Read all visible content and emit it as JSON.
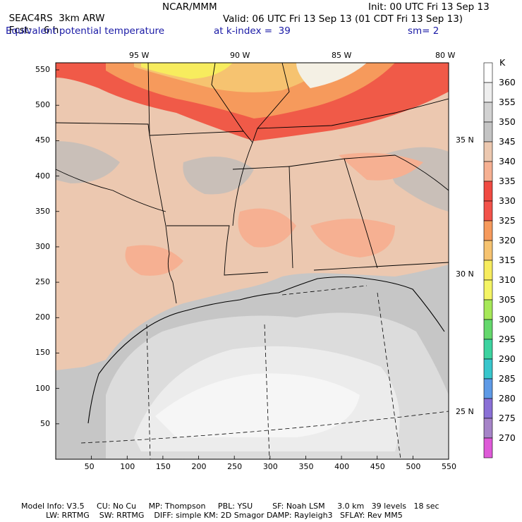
{
  "header": {
    "model": "SEAC4RS",
    "resolution": "3km ARW",
    "org": "NCAR/MMM",
    "init": "Init: 00 UTC Fri 13 Sep 13",
    "fcst_label": "Fcst:",
    "fcst_value": "6 h",
    "valid": "Valid: 06 UTC Fri 13 Sep 13 (01 CDT Fri 13 Sep 13)",
    "field": "Equivalent potential temperature",
    "level": "at k-index =  39",
    "smoothing": "sm= 2"
  },
  "map": {
    "x_ticks": [
      "50",
      "100",
      "150",
      "200",
      "250",
      "300",
      "350",
      "400",
      "450",
      "500",
      "550"
    ],
    "y_ticks": [
      "550",
      "500",
      "450",
      "400",
      "350",
      "300",
      "250",
      "200",
      "150",
      "100",
      "50"
    ],
    "lon_labels": [
      "95 W",
      "90 W",
      "85 W",
      "80 W"
    ],
    "lat_labels": [
      "35 N",
      "30 N",
      "25 N"
    ]
  },
  "colorbar": {
    "unit": "K",
    "levels": [
      {
        "value": "360",
        "color": "#ffffff"
      },
      {
        "value": "355",
        "color": "#eeeeee"
      },
      {
        "value": "350",
        "color": "#d2d2d2"
      },
      {
        "value": "345",
        "color": "#c4c4c4"
      },
      {
        "value": "340",
        "color": "#ecc8b0"
      },
      {
        "value": "335",
        "color": "#f6b092"
      },
      {
        "value": "330",
        "color": "#f04a42"
      },
      {
        "value": "325",
        "color": "#f2524a"
      },
      {
        "value": "320",
        "color": "#f69a5c"
      },
      {
        "value": "315",
        "color": "#f6c370"
      },
      {
        "value": "310",
        "color": "#f7ec5e"
      },
      {
        "value": "305",
        "color": "#f4f464"
      },
      {
        "value": "300",
        "color": "#a6e858"
      },
      {
        "value": "295",
        "color": "#64d86c"
      },
      {
        "value": "290",
        "color": "#3cd3a0"
      },
      {
        "value": "285",
        "color": "#38c6cc"
      },
      {
        "value": "280",
        "color": "#5e9ae6"
      },
      {
        "value": "275",
        "color": "#8a70d6"
      },
      {
        "value": "270",
        "color": "#a684c8"
      },
      {
        "value": "",
        "color": "#de5ad8"
      }
    ]
  },
  "footer": {
    "line1": "Model Info: V3.5     CU: No Cu     MP: Thompson     PBL: YSU        SF: Noah LSM     3.0 km   39 levels   18 sec",
    "line2": "LW: RRTMG    SW: RRTMG    DIFF: simple KM: 2D Smagor DAMP: Rayleigh3   SFLAY: Rev MM5"
  }
}
